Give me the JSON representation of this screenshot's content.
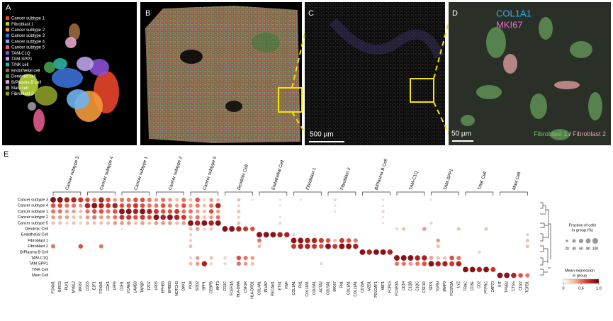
{
  "panels": {
    "a": {
      "label": "A",
      "legend": [
        {
          "name": "Cancer subtype 1",
          "color": "#e8452c"
        },
        {
          "name": "Fibroblast 1",
          "color": "#b8d53a"
        },
        {
          "name": "Cancer subtype 2",
          "color": "#f39a3a"
        },
        {
          "name": "Cancer subtype 3",
          "color": "#3b6fd6"
        },
        {
          "name": "Cancer subtype 4",
          "color": "#6fb3f0"
        },
        {
          "name": "Cancer subtype 5",
          "color": "#e05a8c"
        },
        {
          "name": "TAM-C1Q",
          "color": "#8a4fd0"
        },
        {
          "name": "TAM-SPP1",
          "color": "#b9a3e8"
        },
        {
          "name": "T/NK cell",
          "color": "#2bb3a3"
        },
        {
          "name": "Endothelial cell",
          "color": "#9a6a3c"
        },
        {
          "name": "Dendritic cell",
          "color": "#3fa24a"
        },
        {
          "name": "B/Plasma B cell",
          "color": "#e7a3c8"
        },
        {
          "name": "Mast cell",
          "color": "#9a9a9a"
        },
        {
          "name": "Fibroblast 2",
          "color": "#8c9b2a"
        }
      ]
    },
    "b": {
      "label": "B"
    },
    "c": {
      "label": "C",
      "scale_bar": "500 µm"
    },
    "d": {
      "label": "D",
      "markers": [
        {
          "name": "COL1A1",
          "color": "#2fb0e8"
        },
        {
          "name": "MKI67",
          "color": "#e070c8"
        }
      ],
      "scale_bar": "50 µm",
      "cell_types": [
        {
          "name": "Fibroblast 1",
          "color": "#7cc46b"
        },
        {
          "name": "Fibroblast 2",
          "color": "#e8a0a0"
        }
      ],
      "separator": "/"
    },
    "e": {
      "label": "E",
      "groups": [
        {
          "name": "Cancer subtype 3",
          "genes": [
            "FOXM1",
            "BIRC5",
            "PLK1",
            "MYBL2",
            "MKI67"
          ]
        },
        {
          "name": "Cancer subtype 4",
          "genes": [
            "CDC6",
            "E2F1",
            "FOXM1",
            "CDK1",
            "LRP6"
          ]
        },
        {
          "name": "Cancer subtype 1",
          "genes": [
            "CDH1",
            "VCAM1",
            "LAMB3",
            "TAPBP",
            "FZD7"
          ]
        },
        {
          "name": "Cancer subtype 2",
          "genes": [
            "LRP6",
            "EPHB3",
            "ERBB3",
            "NOTCH3",
            "DKK1"
          ]
        },
        {
          "name": "Cancer subtype 5",
          "genes": [
            "PKM",
            "SOD2",
            "SPP1",
            "CEBPB",
            "AKT3"
          ]
        },
        {
          "name": "Dendritic Cell",
          "genes": [
            "CD1C",
            "FCER1A",
            "HLA-DMA",
            "CSF1R",
            "HLA-DRB1"
          ]
        },
        {
          "name": "Endothelial Cell",
          "genes": [
            "COL4A1",
            "PLVAP",
            "PECAM1",
            "ETS1",
            "VWF"
          ]
        },
        {
          "name": "Fibroblast 1",
          "genes": [
            "COL1A1",
            "FN1",
            "COL11A1",
            "COL5A1",
            "ACTA2"
          ]
        },
        {
          "name": "Fibroblast 2",
          "genes": [
            "COL5A1",
            "MKI67",
            "FN1",
            "COL1A1",
            "COL11A1"
          ]
        },
        {
          "name": "B/Plasma B Cell",
          "genes": [
            "CD79A",
            "MZB1",
            "POU2AF1",
            "XBP1",
            "FCRL5"
          ]
        },
        {
          "name": "TAM-C1Q",
          "genes": [
            "FCGR3A",
            "CD14",
            "C1QB",
            "C1QC",
            "CSF1R"
          ]
        },
        {
          "name": "TAM-SPP1",
          "genes": [
            "SPP1",
            "TGFBI",
            "MMP9",
            "FCGR3A",
            "LYZ"
          ]
        },
        {
          "name": "T/NK Cell",
          "genes": [
            "TRAC",
            "CD3E",
            "CD2",
            "PTPRC",
            "ZAP70"
          ]
        },
        {
          "name": "Mast Cell",
          "genes": [
            "KIT",
            "TPSB2",
            "CTSG",
            "CD22",
            "TGFB1"
          ]
        }
      ],
      "rows": [
        "Cancer subtype 3",
        "Cancer subtype 4",
        "Cancer subtype 1",
        "Cancer subtype 2",
        "Cancer subtype 5",
        "Dendritic Cell",
        "Endothelial Cell",
        "Fibroblast 1",
        "Fibroblast 2",
        "B/Plasma B Cell",
        "TAM-C1Q",
        "TAM-SPP1",
        "T/NK Cell",
        "Mast Cell"
      ],
      "values": [
        [
          0.9,
          0.9,
          0.8,
          0.8,
          0.7,
          0.6,
          0.5,
          0.8,
          0.6,
          0.4,
          0.5,
          0.5,
          0.6,
          0.6,
          0.5,
          0.4,
          0.5,
          0.4,
          0.3,
          0.5,
          0.3,
          0.6,
          0.2,
          0.4,
          0.3,
          0,
          0,
          0.3,
          0,
          0.1,
          0,
          0,
          0,
          0.1,
          0,
          0,
          0.1,
          0,
          0,
          0,
          0,
          0.2,
          0,
          0,
          0,
          0,
          0,
          0,
          0.1,
          0,
          0,
          0,
          0,
          0,
          0,
          0.1,
          0,
          0,
          0,
          0,
          0,
          0,
          0,
          0,
          0,
          0,
          0,
          0,
          0,
          0
        ],
        [
          0.6,
          0.6,
          0.5,
          0.5,
          0.4,
          0.8,
          0.9,
          0.8,
          0.7,
          0.8,
          0.6,
          0.6,
          0.7,
          0.6,
          0.5,
          0.5,
          0.6,
          0.5,
          0.4,
          0.6,
          0.4,
          0.5,
          0.3,
          0.5,
          0.8,
          0,
          0,
          0.2,
          0,
          0,
          0,
          0,
          0,
          0.1,
          0,
          0,
          0,
          0,
          0,
          0,
          0,
          0.1,
          0,
          0,
          0,
          0,
          0,
          0,
          0.1,
          0,
          0,
          0,
          0,
          0,
          0,
          0,
          0,
          0,
          0,
          0,
          0,
          0,
          0,
          0,
          0,
          0,
          0,
          0,
          0,
          0
        ],
        [
          0.5,
          0.5,
          0.4,
          0.4,
          0.3,
          0.5,
          0.6,
          0.6,
          0.5,
          0.6,
          0.9,
          0.9,
          0.8,
          0.9,
          0.8,
          0.7,
          0.6,
          0.6,
          0.7,
          0.5,
          0.5,
          0.4,
          0.3,
          0.6,
          0.4,
          0,
          0,
          0.3,
          0,
          0,
          0,
          0,
          0,
          0,
          0,
          0,
          0,
          0,
          0,
          0,
          0,
          0.1,
          0,
          0,
          0,
          0,
          0,
          0,
          0.2,
          0,
          0,
          0,
          0,
          0,
          0,
          0,
          0,
          0,
          0,
          0,
          0,
          0,
          0,
          0,
          0,
          0,
          0,
          0,
          0,
          0
        ],
        [
          0.4,
          0.4,
          0.4,
          0.3,
          0.3,
          0.4,
          0.5,
          0.4,
          0.4,
          0.5,
          0.7,
          0.7,
          0.6,
          0.7,
          0.6,
          0.9,
          0.8,
          0.9,
          0.8,
          0.7,
          0.4,
          0.5,
          0.3,
          0.4,
          0.5,
          0,
          0,
          0.2,
          0,
          0,
          0,
          0,
          0,
          0.1,
          0,
          0,
          0,
          0,
          0,
          0,
          0,
          0,
          0,
          0,
          0,
          0,
          0,
          0,
          0.1,
          0,
          0,
          0,
          0,
          0,
          0,
          0,
          0,
          0,
          0,
          0,
          0,
          0,
          0,
          0,
          0,
          0,
          0,
          0,
          0,
          0
        ],
        [
          0.3,
          0.3,
          0.2,
          0.3,
          0.2,
          0.3,
          0.3,
          0.3,
          0.3,
          0.4,
          0.4,
          0.4,
          0.3,
          0.4,
          0.3,
          0.4,
          0.4,
          0.4,
          0.3,
          0.4,
          0.9,
          0.8,
          0.9,
          0.8,
          0.9,
          0,
          0,
          0.3,
          0,
          0,
          0,
          0,
          0,
          0.2,
          0,
          0,
          0,
          0,
          0,
          0,
          0,
          0,
          0,
          0,
          0,
          0,
          0,
          0,
          0.1,
          0,
          0,
          0,
          0,
          0,
          0,
          0.2,
          0,
          0,
          0,
          0,
          0,
          0,
          0,
          0,
          0,
          0,
          0,
          0,
          0,
          0
        ],
        [
          0,
          0,
          0,
          0,
          0,
          0,
          0,
          0,
          0,
          0,
          0.1,
          0,
          0,
          0,
          0,
          0,
          0,
          0,
          0,
          0,
          0.3,
          0.4,
          0.2,
          0.3,
          0,
          0.9,
          0.9,
          0.8,
          0.7,
          0.6,
          0,
          0,
          0,
          0,
          0,
          0,
          0,
          0,
          0,
          0,
          0,
          0,
          0,
          0,
          0,
          0,
          0,
          0,
          0,
          0,
          0.2,
          0.3,
          0,
          0,
          0.4,
          0,
          0,
          0,
          0,
          0.3,
          0,
          0,
          0,
          0.3,
          0,
          0,
          0,
          0,
          0,
          0
        ],
        [
          0,
          0,
          0,
          0,
          0,
          0,
          0,
          0,
          0,
          0,
          0,
          0,
          0,
          0,
          0,
          0,
          0,
          0,
          0,
          0,
          0.2,
          0,
          0,
          0,
          0,
          0,
          0,
          0,
          0,
          0,
          0.9,
          0.9,
          0.9,
          0.8,
          0.8,
          0.2,
          0,
          0,
          0.1,
          0,
          0,
          0,
          0,
          0,
          0,
          0,
          0,
          0,
          0,
          0,
          0,
          0,
          0,
          0,
          0,
          0,
          0,
          0,
          0,
          0,
          0,
          0,
          0,
          0,
          0,
          0,
          0,
          0,
          0,
          0.2
        ],
        [
          0,
          0,
          0,
          0,
          0,
          0,
          0,
          0,
          0,
          0,
          0,
          0,
          0,
          0,
          0,
          0,
          0,
          0,
          0,
          0,
          0.2,
          0,
          0,
          0,
          0,
          0,
          0,
          0,
          0,
          0,
          0.5,
          0,
          0,
          0,
          0,
          0.9,
          0.9,
          0.8,
          0.8,
          0.7,
          0.6,
          0.3,
          0.7,
          0.6,
          0.5,
          0,
          0,
          0,
          0,
          0,
          0,
          0,
          0,
          0,
          0,
          0,
          0.4,
          0,
          0,
          0,
          0,
          0,
          0,
          0,
          0,
          0,
          0,
          0,
          0,
          0.3
        ],
        [
          0.5,
          0,
          0,
          0,
          0.6,
          0,
          0,
          0.5,
          0,
          0,
          0,
          0,
          0,
          0,
          0,
          0,
          0,
          0,
          0,
          0,
          0.3,
          0,
          0,
          0,
          0,
          0,
          0,
          0,
          0,
          0,
          0.3,
          0,
          0,
          0,
          0,
          0.7,
          0.8,
          0.8,
          0.7,
          0.6,
          0.9,
          0.7,
          0.9,
          0.9,
          0.8,
          0,
          0,
          0,
          0,
          0,
          0,
          0,
          0,
          0,
          0,
          0,
          0.3,
          0,
          0,
          0,
          0,
          0,
          0,
          0,
          0,
          0,
          0,
          0,
          0,
          0.3
        ],
        [
          0,
          0,
          0,
          0,
          0,
          0,
          0,
          0,
          0,
          0,
          0,
          0,
          0,
          0,
          0,
          0,
          0,
          0,
          0,
          0,
          0,
          0,
          0,
          0,
          0,
          0,
          0,
          0,
          0,
          0,
          0,
          0,
          0,
          0,
          0,
          0,
          0,
          0,
          0,
          0,
          0,
          0,
          0,
          0,
          0,
          0.9,
          0.8,
          0.9,
          0.9,
          0.8,
          0,
          0,
          0,
          0,
          0,
          0,
          0,
          0,
          0,
          0,
          0,
          0,
          0.2,
          0,
          0,
          0,
          0,
          0,
          0,
          0
        ],
        [
          0,
          0,
          0,
          0,
          0,
          0,
          0,
          0,
          0,
          0,
          0,
          0,
          0,
          0,
          0,
          0,
          0,
          0,
          0,
          0,
          0.2,
          0.4,
          0,
          0.3,
          0,
          0.2,
          0,
          0.6,
          0.5,
          0.4,
          0,
          0,
          0,
          0,
          0,
          0,
          0,
          0,
          0,
          0,
          0,
          0,
          0,
          0,
          0,
          0,
          0,
          0,
          0,
          0,
          0.9,
          0.9,
          0.9,
          0.8,
          0.8,
          0.4,
          0.3,
          0.3,
          0.6,
          0.5,
          0,
          0,
          0,
          0,
          0,
          0,
          0,
          0,
          0,
          0
        ],
        [
          0,
          0,
          0,
          0,
          0,
          0,
          0,
          0,
          0,
          0,
          0,
          0,
          0,
          0,
          0,
          0,
          0,
          0,
          0,
          0,
          0.3,
          0.4,
          0.8,
          0.2,
          0,
          0.2,
          0,
          0.5,
          0.4,
          0.3,
          0,
          0,
          0,
          0,
          0,
          0,
          0,
          0,
          0,
          0.2,
          0,
          0,
          0,
          0,
          0,
          0,
          0,
          0,
          0,
          0,
          0.5,
          0.5,
          0.4,
          0.5,
          0.6,
          0.9,
          0.8,
          0.8,
          0.7,
          0.8,
          0,
          0,
          0,
          0,
          0,
          0,
          0,
          0,
          0,
          0
        ],
        [
          0,
          0,
          0,
          0,
          0,
          0,
          0,
          0,
          0,
          0,
          0,
          0,
          0,
          0,
          0,
          0,
          0,
          0,
          0,
          0,
          0,
          0,
          0,
          0,
          0,
          0,
          0,
          0,
          0,
          0,
          0,
          0,
          0,
          0,
          0,
          0,
          0,
          0,
          0,
          0,
          0,
          0,
          0,
          0,
          0,
          0,
          0,
          0,
          0,
          0,
          0,
          0,
          0,
          0,
          0,
          0,
          0,
          0,
          0,
          0,
          0.9,
          0.9,
          0.8,
          0.9,
          0.7,
          0,
          0,
          0,
          0,
          0
        ],
        [
          0,
          0,
          0,
          0,
          0,
          0,
          0,
          0,
          0,
          0,
          0,
          0,
          0,
          0,
          0,
          0,
          0,
          0,
          0,
          0,
          0,
          0,
          0,
          0,
          0,
          0,
          0,
          0,
          0,
          0,
          0,
          0,
          0,
          0,
          0,
          0,
          0,
          0,
          0,
          0,
          0,
          0,
          0,
          0,
          0,
          0,
          0,
          0,
          0,
          0,
          0,
          0,
          0,
          0,
          0,
          0,
          0,
          0,
          0,
          0,
          0,
          0,
          0,
          0,
          0,
          0.9,
          0.9,
          0.8,
          0.6,
          0.5
        ]
      ],
      "size_legend": {
        "title": [
          "Fraction of cells",
          "in group (%)"
        ],
        "ticks": [
          20,
          40,
          60,
          80,
          100
        ]
      },
      "color_legend": {
        "title": [
          "Mean expression",
          "in group"
        ],
        "lim": [
          0,
          1
        ],
        "ticks": [
          0,
          0.5,
          {
            "value": 1,
            "label": "1.0"
          }
        ]
      }
    }
  }
}
